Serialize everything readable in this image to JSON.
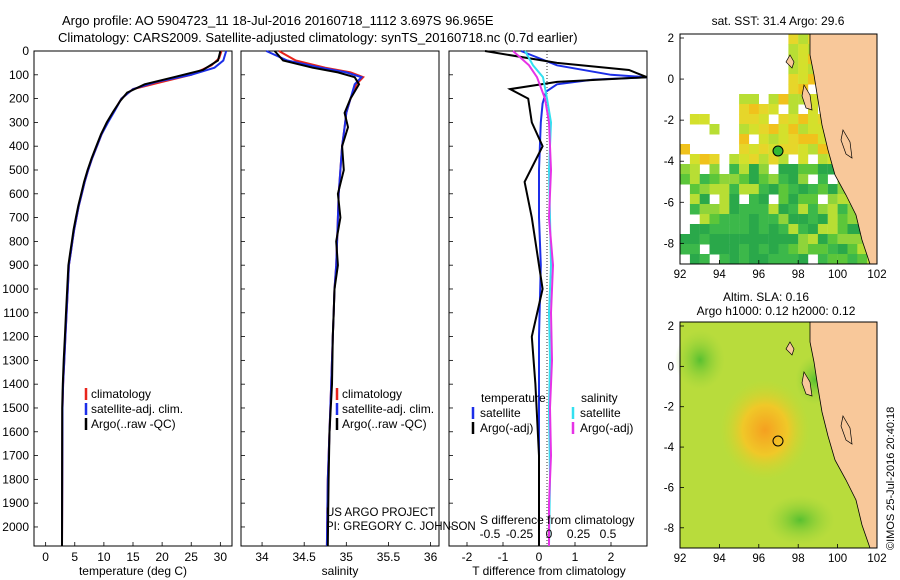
{
  "header": {
    "line1": "Argo profile: AO 5904723_11 18-Jul-2016 20160718_1112 3.697S 96.965E",
    "line2": "Climatology: CARS2009. Satellite-adjusted climatology: synTS_20160718.nc (0.7d earlier)"
  },
  "colors": {
    "climatology": "#e8251c",
    "satellite": "#1c2ee8",
    "argo": "#000000",
    "satellite_s": "#33e0f0",
    "argo_s": "#e633e6",
    "land": "#f8c89a"
  },
  "depth_axis": {
    "ticks": [
      "0",
      "100",
      "200",
      "300",
      "400",
      "500",
      "600",
      "700",
      "800",
      "900",
      "1000",
      "1100",
      "1200",
      "1300",
      "1400",
      "1500",
      "1600",
      "1700",
      "1800",
      "1900",
      "2000"
    ]
  },
  "chart_data": [
    {
      "type": "line",
      "xlabel": "temperature (deg C)",
      "xlim": [
        -2,
        32
      ],
      "ylim": [
        2080,
        0
      ],
      "xticks": [
        "0",
        "5",
        "10",
        "15",
        "20",
        "25",
        "30"
      ],
      "legend": [
        "climatology",
        "satellite-adj. clim.",
        "Argo(..raw -QC)"
      ],
      "series": [
        {
          "name": "climatology",
          "x": [
            30.2,
            29.8,
            28.5,
            25,
            20,
            15,
            13,
            11.8,
            10.6,
            9.6,
            8.8,
            8,
            7.3,
            6.7,
            6.2,
            5.7,
            5.3,
            4.9,
            4.6,
            4.3,
            4,
            3.8,
            3.6,
            3.4,
            3.2,
            3,
            2.9,
            2.8
          ],
          "y": [
            0,
            30,
            60,
            100,
            130,
            160,
            200,
            250,
            300,
            350,
            400,
            450,
            500,
            550,
            600,
            650,
            700,
            750,
            800,
            850,
            900,
            1000,
            1100,
            1200,
            1300,
            1400,
            1500,
            2080
          ]
        },
        {
          "name": "satellite-adj. clim.",
          "x": [
            31,
            30.5,
            29,
            25,
            19,
            15,
            13,
            11.9,
            10.7,
            9.6,
            8.8,
            8,
            7.3,
            6.7,
            6.2,
            5.7,
            5.3,
            4.9,
            4.6,
            4.3,
            4,
            3.8,
            3.6,
            3.4,
            3.2,
            3,
            2.9,
            2.8
          ],
          "y": [
            0,
            40,
            70,
            100,
            130,
            160,
            200,
            250,
            300,
            350,
            400,
            450,
            500,
            550,
            600,
            650,
            700,
            750,
            800,
            850,
            900,
            1000,
            1100,
            1200,
            1300,
            1400,
            1500,
            2080
          ]
        },
        {
          "name": "Argo(..raw -QC)",
          "x": [
            30,
            29.6,
            27,
            22,
            17,
            14,
            12.8,
            11.6,
            10.5,
            9.5,
            8.7,
            7.9,
            7.2,
            6.6,
            6.1,
            5.6,
            5.2,
            4.8,
            4.5,
            4.2,
            3.9,
            3.7,
            3.5,
            3.3,
            3.1,
            2.95,
            2.85,
            2.8
          ],
          "y": [
            0,
            40,
            80,
            110,
            140,
            175,
            210,
            255,
            300,
            350,
            400,
            450,
            500,
            550,
            600,
            650,
            700,
            750,
            800,
            850,
            900,
            1000,
            1100,
            1200,
            1300,
            1400,
            1500,
            2080
          ]
        }
      ]
    },
    {
      "type": "line",
      "xlabel": "salinity",
      "xlim": [
        33.75,
        36.1
      ],
      "ylim": [
        2080,
        0
      ],
      "xticks": [
        "34",
        "34.5",
        "35",
        "35.5",
        "36"
      ],
      "legend": [
        "climatology",
        "satellite-adj. clim.",
        "Argo(..raw -QC)"
      ],
      "footer": [
        "US ARGO PROJECT",
        "PI: GREGORY C. JOHNSON"
      ],
      "series": [
        {
          "name": "climatology",
          "x": [
            34.2,
            34.4,
            34.75,
            35.05,
            35.2,
            35.12,
            35.05,
            35,
            34.98,
            34.95,
            34.93,
            34.91,
            34.9,
            34.89,
            34.88,
            34.86,
            34.85,
            34.84,
            34.82,
            34.8,
            34.78,
            34.77
          ],
          "y": [
            0,
            40,
            70,
            90,
            110,
            140,
            200,
            260,
            320,
            400,
            500,
            600,
            700,
            800,
            900,
            1000,
            1100,
            1200,
            1400,
            1600,
            1800,
            2080
          ]
        },
        {
          "name": "satellite-adj. clim.",
          "x": [
            34.05,
            34.3,
            34.7,
            35,
            35.18,
            35.1,
            35.05,
            35,
            34.98,
            34.95,
            34.93,
            34.91,
            34.9,
            34.89,
            34.88,
            34.86,
            34.85,
            34.84,
            34.82,
            34.8,
            34.78,
            34.77
          ],
          "y": [
            0,
            40,
            70,
            90,
            110,
            140,
            200,
            260,
            320,
            400,
            500,
            600,
            700,
            800,
            900,
            1000,
            1100,
            1200,
            1400,
            1600,
            1800,
            2080
          ]
        },
        {
          "name": "Argo(..raw -QC)",
          "x": [
            34.15,
            34.25,
            34.6,
            34.9,
            35.1,
            35.15,
            35.05,
            34.98,
            35.02,
            34.95,
            34.97,
            34.9,
            34.93,
            34.88,
            34.9,
            34.86,
            34.85,
            34.84,
            34.83,
            34.8,
            34.79,
            34.78
          ],
          "y": [
            0,
            40,
            70,
            90,
            110,
            140,
            200,
            260,
            320,
            400,
            500,
            600,
            700,
            800,
            900,
            1000,
            1100,
            1200,
            1400,
            1600,
            1800,
            2080
          ]
        }
      ]
    },
    {
      "type": "line",
      "xlabel": "T difference from climatology",
      "xlabel_top": "S difference from climatology",
      "xlim": [
        -2.5,
        3
      ],
      "ylim": [
        2080,
        0
      ],
      "xticks": [
        "-2",
        "-1",
        "0",
        "1",
        "2"
      ],
      "xticks_top": [
        "-0.5",
        "-0.25",
        "0",
        "0.25",
        "0.5"
      ],
      "legend": [
        "temperature",
        "satellite",
        "Argo(-adj)",
        "salinity",
        "satellite",
        "Argo(-adj)"
      ],
      "series": [
        {
          "name": "satellite",
          "x": [
            -0.5,
            0.5,
            2,
            3,
            1.5,
            0.5,
            0.2,
            0.1,
            0.05,
            0,
            0,
            0.05,
            0,
            0,
            0,
            0
          ],
          "y": [
            0,
            60,
            100,
            110,
            120,
            140,
            170,
            220,
            300,
            500,
            700,
            900,
            1200,
            1500,
            1800,
            2080
          ]
        },
        {
          "name": "Argo(-adj)",
          "x": [
            -1.5,
            0.5,
            2.5,
            3,
            0.5,
            -0.8,
            -0.3,
            -0.2,
            0.1,
            -0.4,
            -0.2,
            0,
            0.1,
            -0.2,
            -0.1,
            0,
            0
          ],
          "y": [
            0,
            50,
            80,
            110,
            130,
            160,
            200,
            300,
            400,
            550,
            700,
            900,
            1000,
            1200,
            1400,
            1700,
            2080
          ]
        },
        {
          "name": "satellite",
          "x": [
            -1.2,
            -0.8,
            -0.3,
            -0.1,
            0.1,
            0,
            0.05,
            0.1,
            0,
            0.05,
            0,
            0.05,
            0
          ],
          "y": [
            0,
            60,
            110,
            200,
            300,
            500,
            700,
            900,
            1100,
            1300,
            1500,
            1800,
            2080
          ]
        },
        {
          "name": "Argo(-adj)",
          "x": [
            -1.8,
            -1,
            -0.6,
            -0.2,
            0,
            0.1,
            0,
            0.2,
            0.1,
            0.15,
            0.05,
            0.1,
            0,
            0
          ],
          "y": [
            0,
            60,
            110,
            200,
            300,
            500,
            700,
            900,
            1100,
            1300,
            1500,
            1700,
            1900,
            2080
          ]
        }
      ]
    }
  ],
  "map_top": {
    "title": "sat. SST: 31.4 Argo: 29.6",
    "xticks": [
      "92",
      "94",
      "96",
      "98",
      "100",
      "102"
    ],
    "yticks": [
      "2",
      "0",
      "-2",
      "-4",
      "-6",
      "-8"
    ]
  },
  "map_bottom": {
    "title1": "Altim. SLA: 0.16",
    "title2": "Argo h1000: 0.12 h2000: 0.12",
    "xticks": [
      "92",
      "94",
      "96",
      "98",
      "100",
      "102"
    ],
    "yticks": [
      "2",
      "0",
      "-2",
      "-4",
      "-6",
      "-8"
    ]
  },
  "stamp": "©IMOS 25-Jul-2016 20:40:18"
}
